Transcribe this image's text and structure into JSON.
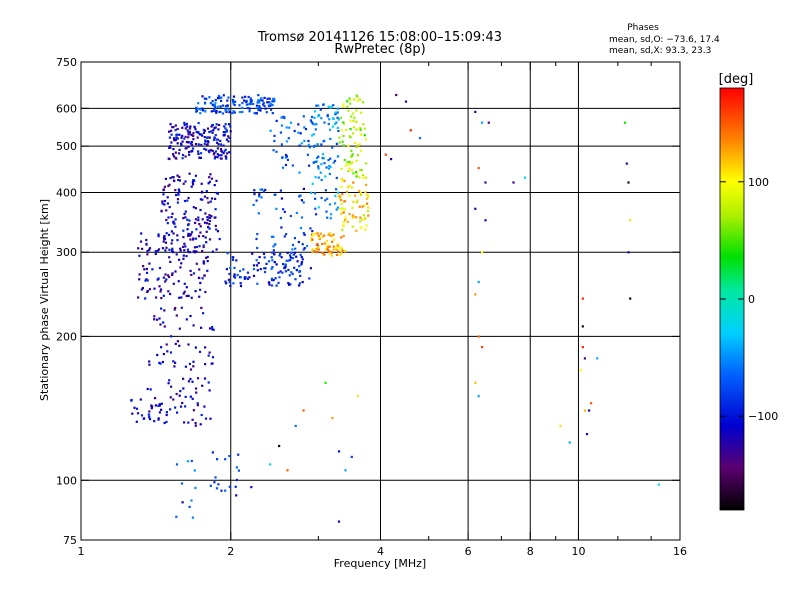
{
  "chart_data": {
    "type": "scatter",
    "title": "Tromsø 20141126 15:08:00–15:09:43",
    "subtitle": "RwPretec (8p)",
    "phase_box": {
      "title": "Phases",
      "line_o": "mean, sd,O: −73.6, 17.4",
      "line_x": "mean, sd,X:  93.3, 23.3"
    },
    "xlabel": "Frequency [MHz]",
    "ylabel": "Stationary phase Virtual Height [km]",
    "x_scale": "log",
    "y_scale": "log",
    "xlim": [
      1,
      16
    ],
    "ylim": [
      75,
      750
    ],
    "x_ticks": [
      1,
      2,
      4,
      6,
      8,
      10,
      16
    ],
    "x_tick_labels": [
      "1",
      "2",
      "4",
      "6",
      "8",
      "10",
      "16"
    ],
    "x_minor_ticks": [
      3,
      5,
      7,
      9,
      12,
      14
    ],
    "y_ticks": [
      75,
      100,
      200,
      300,
      400,
      500,
      600,
      750
    ],
    "y_tick_labels": [
      "75",
      "100",
      "200",
      "300",
      "400",
      "500",
      "600",
      "750"
    ],
    "x_grid": [
      2,
      4,
      6,
      8,
      10
    ],
    "y_grid": [
      100,
      200,
      300,
      400,
      500,
      600
    ],
    "grid": true,
    "colorbar": {
      "label": "[deg]",
      "min": -180,
      "max": 180,
      "ticks": [
        100,
        0,
        -100
      ],
      "tick_labels": [
        "100",
        "0",
        "−100"
      ]
    },
    "clusters": [
      {
        "x": [
          1.7,
          2.45
        ],
        "y": [
          585,
          640
        ],
        "phase": [
          -110,
          -45
        ],
        "n": 140
      },
      {
        "x": [
          1.5,
          2.0
        ],
        "y": [
          470,
          560
        ],
        "phase": [
          -140,
          -80
        ],
        "n": 180
      },
      {
        "x": [
          1.45,
          1.9
        ],
        "y": [
          300,
          440
        ],
        "phase": [
          -140,
          -85
        ],
        "n": 150
      },
      {
        "x": [
          1.3,
          1.8
        ],
        "y": [
          240,
          330
        ],
        "phase": [
          -140,
          -90
        ],
        "n": 130
      },
      {
        "x": [
          1.95,
          2.9
        ],
        "y": [
          255,
          300
        ],
        "phase": [
          -120,
          -60
        ],
        "n": 120
      },
      {
        "x": [
          2.2,
          3.0
        ],
        "y": [
          300,
          410
        ],
        "phase": [
          -110,
          -50
        ],
        "n": 60
      },
      {
        "x": [
          2.4,
          3.0
        ],
        "y": [
          440,
          580
        ],
        "phase": [
          -100,
          -40
        ],
        "n": 55
      },
      {
        "x": [
          2.9,
          3.3
        ],
        "y": [
          350,
          620
        ],
        "phase": [
          -80,
          -20
        ],
        "n": 90
      },
      {
        "x": [
          3.3,
          3.75
        ],
        "y": [
          430,
          640
        ],
        "phase": [
          40,
          110
        ],
        "n": 80
      },
      {
        "x": [
          2.9,
          3.4
        ],
        "y": [
          295,
          330
        ],
        "phase": [
          100,
          150
        ],
        "n": 70
      },
      {
        "x": [
          3.3,
          3.8
        ],
        "y": [
          330,
          430
        ],
        "phase": [
          70,
          140
        ],
        "n": 70
      },
      {
        "x": [
          1.35,
          1.85
        ],
        "y": [
          130,
          230
        ],
        "phase": [
          -140,
          -90
        ],
        "n": 110
      },
      {
        "x": [
          1.25,
          1.5
        ],
        "y": [
          130,
          150
        ],
        "phase": [
          -120,
          -80
        ],
        "n": 25
      },
      {
        "x": [
          1.8,
          2.2
        ],
        "y": [
          95,
          115
        ],
        "phase": [
          -100,
          -60
        ],
        "n": 18
      },
      {
        "x": [
          1.55,
          1.7
        ],
        "y": [
          83,
          110
        ],
        "phase": [
          -80,
          -40
        ],
        "n": 10
      }
    ],
    "points": [
      {
        "x": 4.3,
        "y": 640,
        "phase": -150
      },
      {
        "x": 4.5,
        "y": 620,
        "phase": -130
      },
      {
        "x": 4.6,
        "y": 540,
        "phase": 170
      },
      {
        "x": 4.8,
        "y": 520,
        "phase": -60
      },
      {
        "x": 4.1,
        "y": 480,
        "phase": 160
      },
      {
        "x": 4.2,
        "y": 470,
        "phase": -130
      },
      {
        "x": 6.2,
        "y": 590,
        "phase": -130
      },
      {
        "x": 6.4,
        "y": 560,
        "phase": -40
      },
      {
        "x": 6.6,
        "y": 560,
        "phase": -140
      },
      {
        "x": 6.3,
        "y": 450,
        "phase": 150
      },
      {
        "x": 6.5,
        "y": 420,
        "phase": -130
      },
      {
        "x": 6.2,
        "y": 370,
        "phase": -120
      },
      {
        "x": 6.5,
        "y": 350,
        "phase": -120
      },
      {
        "x": 6.4,
        "y": 300,
        "phase": 100
      },
      {
        "x": 6.3,
        "y": 260,
        "phase": -40
      },
      {
        "x": 6.2,
        "y": 245,
        "phase": 130
      },
      {
        "x": 6.3,
        "y": 200,
        "phase": 150
      },
      {
        "x": 6.4,
        "y": 190,
        "phase": 160
      },
      {
        "x": 6.2,
        "y": 160,
        "phase": 120
      },
      {
        "x": 6.3,
        "y": 150,
        "phase": -40
      },
      {
        "x": 7.4,
        "y": 420,
        "phase": -130
      },
      {
        "x": 7.8,
        "y": 430,
        "phase": -30
      },
      {
        "x": 10.2,
        "y": 240,
        "phase": 170
      },
      {
        "x": 10.2,
        "y": 210,
        "phase": -170
      },
      {
        "x": 10.2,
        "y": 190,
        "phase": 170
      },
      {
        "x": 10.3,
        "y": 180,
        "phase": -140
      },
      {
        "x": 10.9,
        "y": 180,
        "phase": -40
      },
      {
        "x": 10.1,
        "y": 170,
        "phase": 100
      },
      {
        "x": 10.6,
        "y": 145,
        "phase": 150
      },
      {
        "x": 10.3,
        "y": 140,
        "phase": 120
      },
      {
        "x": 10.4,
        "y": 125,
        "phase": -120
      },
      {
        "x": 9.6,
        "y": 120,
        "phase": -40
      },
      {
        "x": 9.2,
        "y": 130,
        "phase": 110
      },
      {
        "x": 10.5,
        "y": 140,
        "phase": -120
      },
      {
        "x": 12.4,
        "y": 560,
        "phase": 40
      },
      {
        "x": 12.5,
        "y": 460,
        "phase": -130
      },
      {
        "x": 12.6,
        "y": 420,
        "phase": -170
      },
      {
        "x": 12.7,
        "y": 350,
        "phase": 110
      },
      {
        "x": 12.6,
        "y": 300,
        "phase": -120
      },
      {
        "x": 12.7,
        "y": 240,
        "phase": -170
      },
      {
        "x": 14.5,
        "y": 98,
        "phase": -20
      },
      {
        "x": 3.1,
        "y": 160,
        "phase": 40
      },
      {
        "x": 3.6,
        "y": 150,
        "phase": 110
      },
      {
        "x": 2.8,
        "y": 140,
        "phase": 150
      },
      {
        "x": 3.2,
        "y": 135,
        "phase": 130
      },
      {
        "x": 2.7,
        "y": 130,
        "phase": -60
      },
      {
        "x": 2.5,
        "y": 118,
        "phase": -170
      },
      {
        "x": 3.3,
        "y": 115,
        "phase": -100
      },
      {
        "x": 3.5,
        "y": 112,
        "phase": -80
      },
      {
        "x": 2.6,
        "y": 105,
        "phase": 150
      },
      {
        "x": 3.4,
        "y": 105,
        "phase": -40
      },
      {
        "x": 2.4,
        "y": 108,
        "phase": -20
      },
      {
        "x": 3.3,
        "y": 82,
        "phase": -120
      },
      {
        "x": 2.05,
        "y": 93,
        "phase": -110
      },
      {
        "x": 1.6,
        "y": 90,
        "phase": -120
      }
    ]
  }
}
